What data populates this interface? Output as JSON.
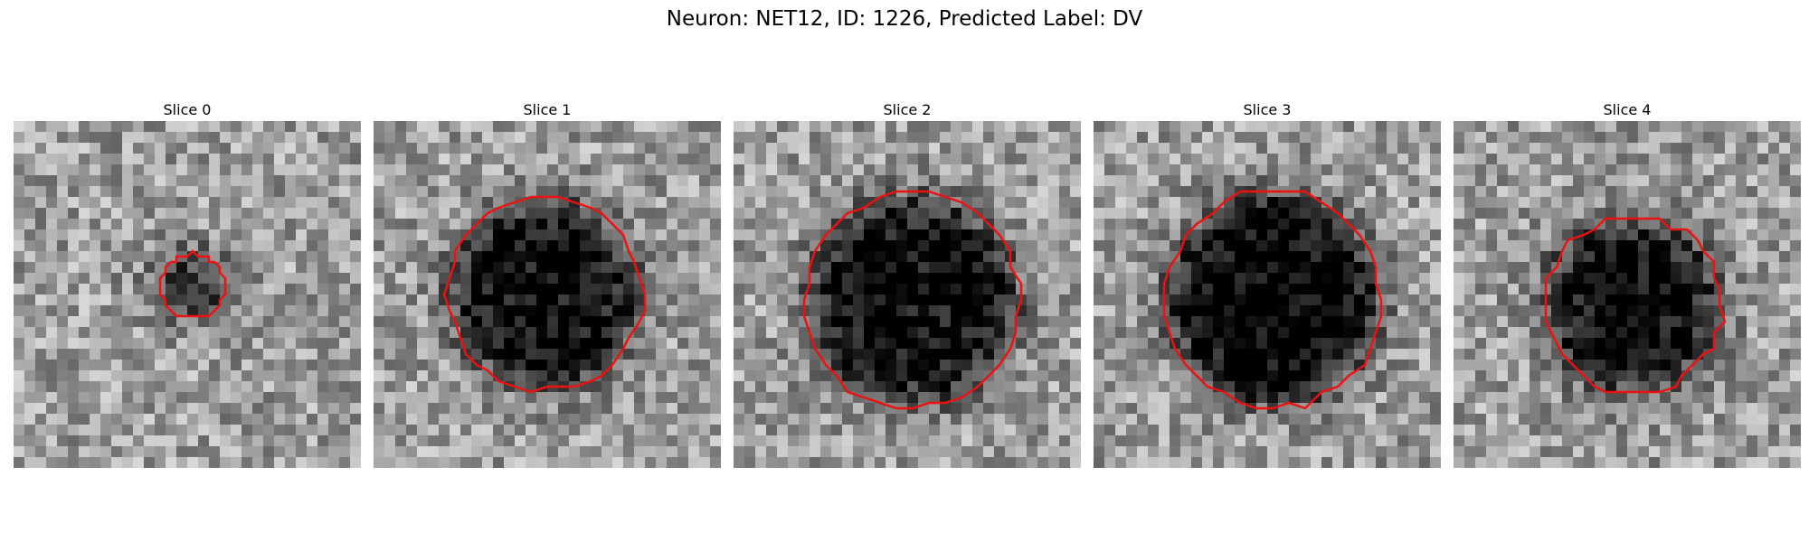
{
  "figure": {
    "title": "Neuron: NET12, ID: 1226, Predicted Label: DV"
  },
  "contour_color": "#ee1111",
  "colormap": "gray",
  "grid_size": 32,
  "slices": [
    {
      "title": "Slice 0",
      "blob": {
        "cx": 16.5,
        "cy": 15.2,
        "r": 3.2,
        "darkness": 0.45
      },
      "contour_radius": 3.0
    },
    {
      "title": "Slice 1",
      "blob": {
        "cx": 15.8,
        "cy": 15.9,
        "r": 8.5,
        "darkness": 0.6
      },
      "contour_radius": 9.0
    },
    {
      "title": "Slice 2",
      "blob": {
        "cx": 16.5,
        "cy": 16.5,
        "r": 9.5,
        "darkness": 0.6
      },
      "contour_radius": 10.0
    },
    {
      "title": "Slice 3",
      "blob": {
        "cx": 16.5,
        "cy": 16.5,
        "r": 9.5,
        "darkness": 0.65
      },
      "contour_radius": 10.0
    },
    {
      "title": "Slice 4",
      "blob": {
        "cx": 16.5,
        "cy": 17.0,
        "r": 8.0,
        "darkness": 0.6
      },
      "contour_radius": 8.2
    }
  ]
}
